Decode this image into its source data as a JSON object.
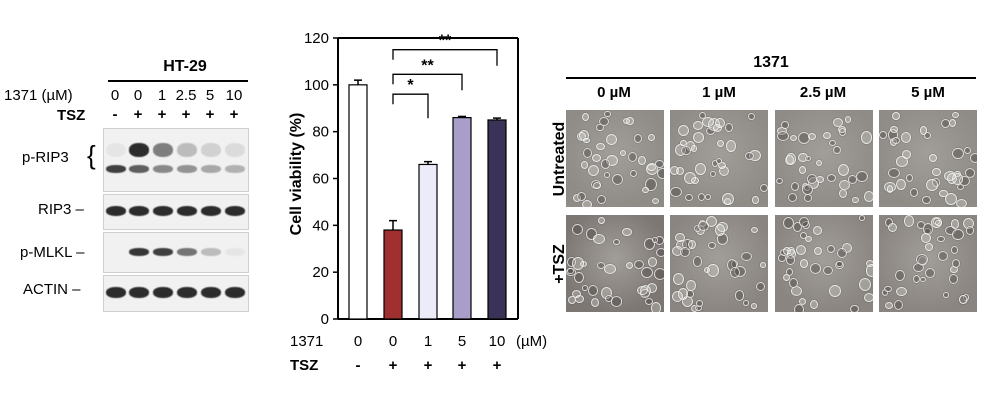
{
  "western_blot": {
    "cell_line": "HT-29",
    "dose_label": "1371 (µM)",
    "tsz_label": "TSZ",
    "doses": [
      "0",
      "0",
      "1",
      "2.5",
      "5",
      "10"
    ],
    "tsz": [
      "-",
      "+",
      "+",
      "+",
      "+",
      "+"
    ],
    "blots": [
      {
        "label": "p-RIP3",
        "bracket": "{"
      },
      {
        "label": "RIP3 –"
      },
      {
        "label": "p-MLKL –"
      },
      {
        "label": "ACTIN –"
      }
    ],
    "band_intensity": {
      "p-RIP3_upper": [
        0.05,
        0.95,
        0.55,
        0.25,
        0.15,
        0.1
      ],
      "p-RIP3_lower": [
        0.85,
        0.7,
        0.5,
        0.45,
        0.35,
        0.3
      ],
      "RIP3": [
        0.95,
        0.95,
        0.95,
        0.95,
        0.95,
        0.95
      ],
      "p-MLKL": [
        0.0,
        0.9,
        0.85,
        0.6,
        0.25,
        0.05
      ],
      "ACTIN": [
        0.95,
        0.95,
        0.95,
        0.95,
        0.95,
        0.95
      ]
    }
  },
  "chart_data": {
    "type": "bar",
    "ylabel": "Cell viability (%)",
    "ylim": [
      0,
      120
    ],
    "yticks": [
      "0",
      "20",
      "40",
      "60",
      "80",
      "100",
      "120"
    ],
    "categories": [
      "0",
      "0",
      "1",
      "5",
      "10"
    ],
    "x_row_label": "1371",
    "x_unit": "(µM)",
    "tsz_row_label": "TSZ",
    "tsz": [
      "-",
      "+",
      "+",
      "+",
      "+"
    ],
    "values": [
      100,
      38,
      66,
      86,
      85
    ],
    "errors": [
      2,
      4,
      1.2,
      0.5,
      0.8
    ],
    "colors": [
      "#ffffff",
      "#a0302f",
      "#ecebf8",
      "#a99ec9",
      "#3b3257"
    ],
    "significance": [
      {
        "from": 1,
        "to": 2,
        "label": "*"
      },
      {
        "from": 1,
        "to": 3,
        "label": "**"
      },
      {
        "from": 1,
        "to": 4,
        "label": "**"
      }
    ]
  },
  "micrographs": {
    "title": "1371",
    "columns": [
      "0 µM",
      "1 µM",
      "2.5 µM",
      "5 µM"
    ],
    "rows": [
      "Untreated",
      "+TSZ"
    ]
  }
}
